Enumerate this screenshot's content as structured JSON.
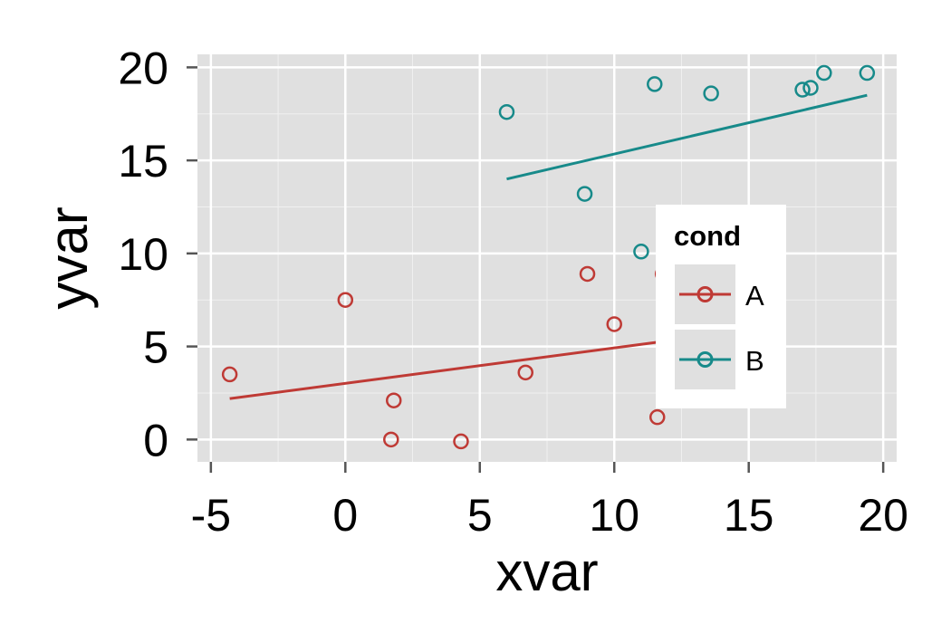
{
  "chart_data": {
    "type": "scatter",
    "xlabel": "xvar",
    "ylabel": "yvar",
    "xlim": [
      -5.5,
      20.5
    ],
    "ylim": [
      -1.2,
      20.7
    ],
    "x_ticks": [
      -5,
      0,
      5,
      10,
      15,
      20
    ],
    "x_tick_labels": [
      "-5",
      "0",
      "5",
      "10",
      "15",
      "20"
    ],
    "y_ticks": [
      0,
      5,
      10,
      15,
      20
    ],
    "y_tick_labels": [
      "0",
      "5",
      "10",
      "15",
      "20"
    ],
    "grid": true,
    "panel_background": "#e0e0e0",
    "legend": {
      "title": "cond",
      "position": "inside-right"
    },
    "series": [
      {
        "name": "A",
        "color": "#bf3a35",
        "points": [
          [
            -4.3,
            3.5
          ],
          [
            0.0,
            7.5
          ],
          [
            1.8,
            2.1
          ],
          [
            1.7,
            0.0
          ],
          [
            4.3,
            -0.1
          ],
          [
            6.7,
            3.6
          ],
          [
            9.0,
            8.9
          ],
          [
            10.0,
            6.2
          ],
          [
            11.6,
            1.2
          ],
          [
            11.8,
            8.9
          ]
        ],
        "fit_line": [
          [
            -4.3,
            2.2
          ],
          [
            12.5,
            5.4
          ]
        ]
      },
      {
        "name": "B",
        "color": "#178a8a",
        "points": [
          [
            6.0,
            17.6
          ],
          [
            8.9,
            13.2
          ],
          [
            11.0,
            10.1
          ],
          [
            11.5,
            19.1
          ],
          [
            13.6,
            18.6
          ],
          [
            17.0,
            18.8
          ],
          [
            17.3,
            18.9
          ],
          [
            17.8,
            19.7
          ],
          [
            19.4,
            19.7
          ]
        ],
        "fit_line": [
          [
            6.0,
            14.0
          ],
          [
            19.4,
            18.5
          ]
        ]
      }
    ]
  }
}
